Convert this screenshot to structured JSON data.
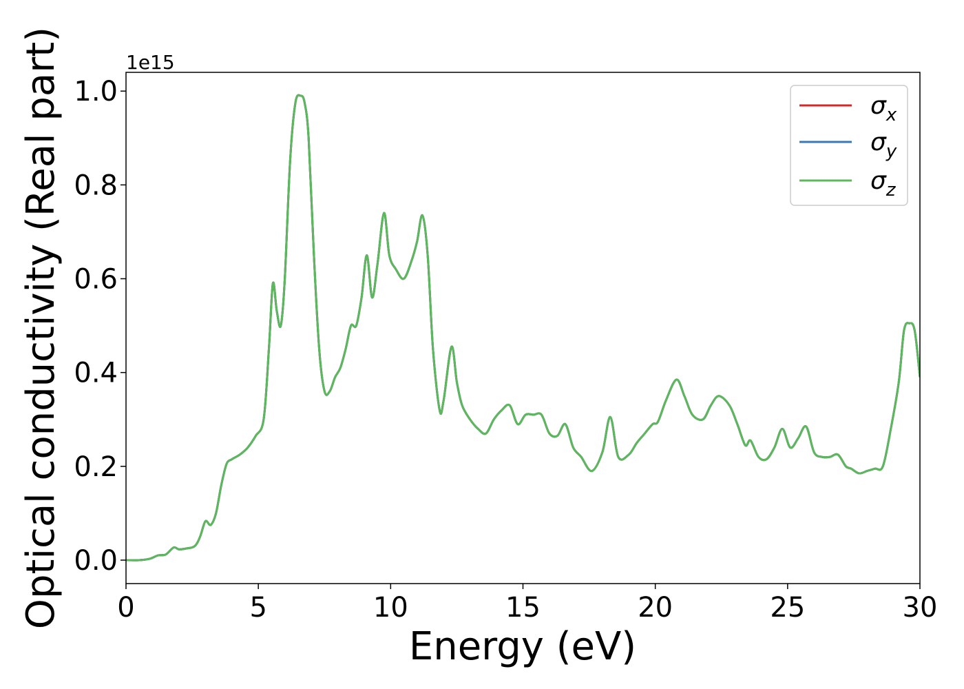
{
  "chart_data": {
    "type": "line",
    "title": "",
    "xlabel": "Energy (eV)",
    "ylabel": "Optical conductivity (Real part)",
    "y_offset_label": "1e15",
    "xlim": [
      0,
      30
    ],
    "ylim": [
      -0.05,
      1.04
    ],
    "x_ticks": [
      0,
      5,
      10,
      15,
      20,
      25,
      30
    ],
    "x_tick_labels": [
      "0",
      "5",
      "10",
      "15",
      "20",
      "25",
      "30"
    ],
    "y_ticks": [
      0.0,
      0.2,
      0.4,
      0.6,
      0.8,
      1.0
    ],
    "y_tick_labels": [
      "0.0",
      "0.2",
      "0.4",
      "0.6",
      "0.8",
      "1.0"
    ],
    "grid": false,
    "legend_position": "top-right",
    "series": [
      {
        "name": "σx",
        "symbol": "σ",
        "subscript": "x",
        "color": "#d62728"
      },
      {
        "name": "σy",
        "symbol": "σ",
        "subscript": "y",
        "color": "#3a78b5"
      },
      {
        "name": "σz",
        "symbol": "σ",
        "subscript": "z",
        "color": "#5cb85c"
      }
    ],
    "x": [
      0,
      0.5,
      0.9,
      1.2,
      1.5,
      1.8,
      2.0,
      2.3,
      2.6,
      2.8,
      3.0,
      3.2,
      3.4,
      3.6,
      3.8,
      4.0,
      4.3,
      4.6,
      4.9,
      5.2,
      5.4,
      5.55,
      5.7,
      5.85,
      6.0,
      6.2,
      6.4,
      6.6,
      6.75,
      6.9,
      7.1,
      7.3,
      7.5,
      7.7,
      7.9,
      8.1,
      8.3,
      8.5,
      8.7,
      8.9,
      9.1,
      9.3,
      9.5,
      9.75,
      9.95,
      10.2,
      10.5,
      10.8,
      11.0,
      11.2,
      11.4,
      11.6,
      11.85,
      12.0,
      12.3,
      12.5,
      12.7,
      13.0,
      13.3,
      13.6,
      13.9,
      14.2,
      14.5,
      14.8,
      15.1,
      15.4,
      15.7,
      16.0,
      16.3,
      16.6,
      16.9,
      17.2,
      17.6,
      18.0,
      18.3,
      18.6,
      19.0,
      19.3,
      19.6,
      19.9,
      20.1,
      20.4,
      20.8,
      21.1,
      21.4,
      21.8,
      22.1,
      22.4,
      22.8,
      23.1,
      23.4,
      23.6,
      23.9,
      24.2,
      24.5,
      24.8,
      25.1,
      25.4,
      25.7,
      26.0,
      26.3,
      26.6,
      26.9,
      27.2,
      27.4,
      27.7,
      28.0,
      28.3,
      28.6,
      28.9,
      29.2,
      29.4,
      29.6,
      29.8,
      30.0
    ],
    "values": [
      0,
      0,
      0.003,
      0.01,
      0.012,
      0.027,
      0.023,
      0.025,
      0.03,
      0.05,
      0.083,
      0.075,
      0.1,
      0.16,
      0.205,
      0.215,
      0.225,
      0.24,
      0.265,
      0.3,
      0.45,
      0.59,
      0.53,
      0.5,
      0.6,
      0.85,
      0.975,
      0.99,
      0.975,
      0.9,
      0.65,
      0.45,
      0.36,
      0.36,
      0.39,
      0.41,
      0.45,
      0.5,
      0.5,
      0.56,
      0.65,
      0.56,
      0.63,
      0.74,
      0.65,
      0.62,
      0.6,
      0.64,
      0.68,
      0.735,
      0.65,
      0.45,
      0.32,
      0.34,
      0.455,
      0.38,
      0.33,
      0.3,
      0.28,
      0.27,
      0.3,
      0.32,
      0.33,
      0.29,
      0.31,
      0.31,
      0.31,
      0.27,
      0.265,
      0.29,
      0.24,
      0.22,
      0.19,
      0.23,
      0.305,
      0.22,
      0.225,
      0.25,
      0.27,
      0.29,
      0.295,
      0.34,
      0.385,
      0.35,
      0.31,
      0.3,
      0.33,
      0.35,
      0.33,
      0.29,
      0.245,
      0.255,
      0.22,
      0.215,
      0.24,
      0.28,
      0.24,
      0.26,
      0.285,
      0.23,
      0.22,
      0.22,
      0.225,
      0.2,
      0.195,
      0.185,
      0.19,
      0.195,
      0.2,
      0.28,
      0.38,
      0.49,
      0.505,
      0.49,
      0.39
    ]
  }
}
